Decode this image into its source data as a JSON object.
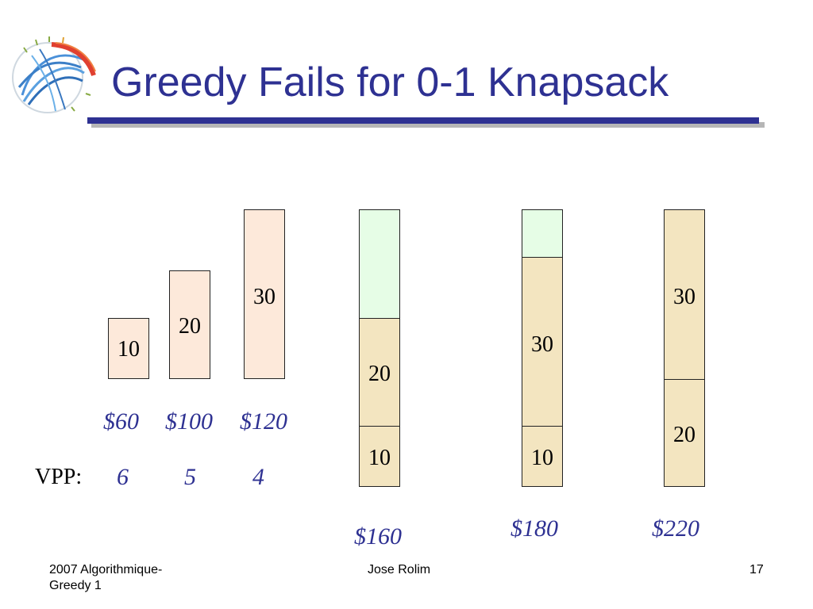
{
  "slide": {
    "title": "Greedy Fails for 0-1 Knapsack",
    "title_color": "#2e3192"
  },
  "items": [
    {
      "weight": "10",
      "value": "$60",
      "vpp": "6"
    },
    {
      "weight": "20",
      "value": "$100",
      "vpp": "5"
    },
    {
      "weight": "30",
      "value": "$120",
      "vpp": "4"
    }
  ],
  "vpp_label": "VPP:",
  "knapsacks": [
    {
      "segments": [
        "20",
        "10"
      ],
      "total": "$160"
    },
    {
      "segments": [
        "30",
        "10"
      ],
      "total": "$180"
    },
    {
      "segments": [
        "30",
        "20"
      ],
      "total": "$220"
    }
  ],
  "colors": {
    "item_fill": "#fde9da",
    "packed_fill": "#f3e5c0",
    "empty_fill": "#e6fde6",
    "value_text": "#2e3192"
  },
  "footer": {
    "left": "2007 Algorithmique-\nGreedy 1",
    "left_line1": "2007 Algorithmique-",
    "left_line2": "Greedy 1",
    "center": "Jose Rolim",
    "page_number": "17"
  }
}
